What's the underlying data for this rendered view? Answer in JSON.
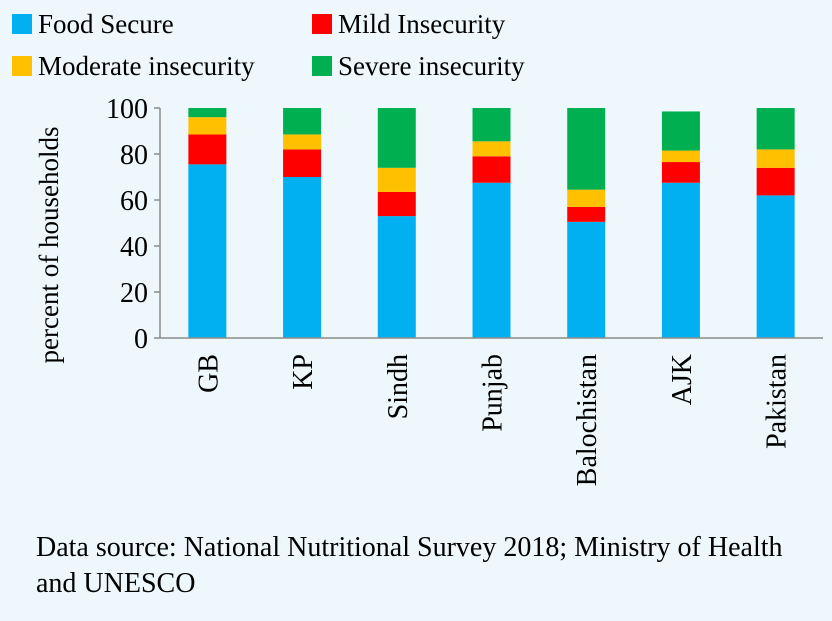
{
  "chart_data": {
    "type": "bar",
    "stacked": true,
    "ylabel": "percent of households",
    "ylim": [
      0,
      100
    ],
    "yticks": [
      0,
      20,
      40,
      60,
      80,
      100
    ],
    "grid": false,
    "legend_position": "top",
    "categories": [
      "GB",
      "KP",
      "Sindh",
      "Punjab",
      "Balochistan",
      "AJK",
      "Pakistan"
    ],
    "series": [
      {
        "name": "Food Secure",
        "color": "#00b0f0",
        "values": [
          75.5,
          70,
          53,
          67.5,
          50.5,
          67.5,
          62
        ]
      },
      {
        "name": "Mild Insecurity",
        "color": "#ff0000",
        "values": [
          13,
          12,
          10.5,
          11.5,
          6.5,
          9,
          12
        ]
      },
      {
        "name": "Moderate insecurity",
        "color": "#ffc000",
        "values": [
          7.5,
          6.5,
          10.5,
          6.5,
          7.5,
          5,
          8
        ]
      },
      {
        "name": "Severe insecurity",
        "color": "#00b050",
        "values": [
          4,
          11.5,
          26,
          14.5,
          35.5,
          17,
          18
        ]
      }
    ]
  },
  "source_note": "Data source: National Nutritional Survey 2018; Ministry of Health and UNESCO"
}
